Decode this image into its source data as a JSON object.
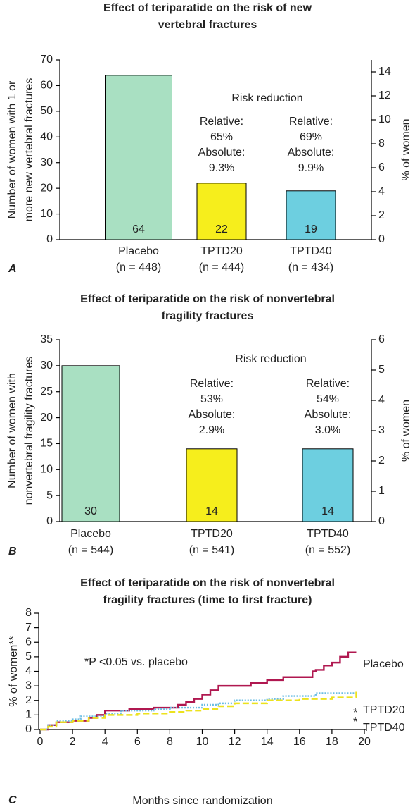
{
  "chart_data": [
    {
      "type": "bar",
      "panel": "A",
      "title": [
        "Effect of teriparatide on the risk of new",
        "vertebral fractures"
      ],
      "ylabel": [
        "Number of women with 1 or",
        "more new vertebral fractures"
      ],
      "y2label": "% of women",
      "categories": [
        "Placebo",
        "TPTD20",
        "TPTD40"
      ],
      "sample_sizes": [
        "(n = 448)",
        "(n = 444)",
        "(n = 434)"
      ],
      "values": [
        64,
        22,
        19
      ],
      "colors": [
        "#a9e0c2",
        "#f6ee1c",
        "#6dcfe0"
      ],
      "ylim": [
        0,
        70
      ],
      "yticks": [
        0,
        10,
        20,
        30,
        40,
        50,
        60,
        70
      ],
      "y2lim": [
        0,
        15
      ],
      "y2ticks": [
        0,
        2,
        4,
        6,
        8,
        10,
        12,
        14
      ],
      "annotations": {
        "heading": "Risk reduction",
        "groups": [
          {
            "category": 1,
            "lines": [
              "Relative:",
              "65%",
              "Absolute:",
              "9.3%"
            ]
          },
          {
            "category": 2,
            "lines": [
              "Relative:",
              "69%",
              "Absolute:",
              "9.9%"
            ]
          }
        ]
      }
    },
    {
      "type": "bar",
      "panel": "B",
      "title": [
        "Effect of teriparatide on the risk of nonvertebral",
        "fragility fractures"
      ],
      "ylabel": [
        "Number of women with",
        "nonvertebral fragility fractures"
      ],
      "y2label": "% of women",
      "categories": [
        "Placebo",
        "TPTD20",
        "TPTD40"
      ],
      "sample_sizes": [
        "(n = 544)",
        "(n = 541)",
        "(n = 552)"
      ],
      "values": [
        30,
        14,
        14
      ],
      "colors": [
        "#a9e0c2",
        "#f6ee1c",
        "#6dcfe0"
      ],
      "ylim": [
        0,
        35
      ],
      "yticks": [
        0,
        5,
        10,
        15,
        20,
        25,
        30,
        35
      ],
      "y2lim": [
        0,
        6
      ],
      "y2ticks": [
        0,
        1,
        2,
        3,
        4,
        5,
        6
      ],
      "annotations": {
        "heading": "Risk reduction",
        "groups": [
          {
            "category": 1,
            "lines": [
              "Relative:",
              "53%",
              "Absolute:",
              "2.9%"
            ]
          },
          {
            "category": 2,
            "lines": [
              "Relative:",
              "54%",
              "Absolute:",
              "3.0%"
            ]
          }
        ]
      }
    },
    {
      "type": "line",
      "panel": "C",
      "step": true,
      "title": [
        "Effect of teriparatide on the risk of nonvertebral",
        "fragility fractures (time to first fracture)"
      ],
      "ylabel": "% of women**",
      "xlabel": "Months since randomization",
      "note": "*P <0.05 vs. placebo",
      "xlim": [
        0,
        20
      ],
      "xticks": [
        0,
        2,
        4,
        6,
        8,
        10,
        12,
        14,
        16,
        18,
        20
      ],
      "ylim": [
        0,
        8
      ],
      "yticks": [
        0,
        1,
        2,
        3,
        4,
        5,
        6,
        7,
        8
      ],
      "series": [
        {
          "name": "Placebo",
          "color": "#b01850",
          "dash": "solid",
          "x": [
            0,
            0.5,
            1,
            2,
            3,
            3.5,
            4,
            5.5,
            7,
            8.5,
            9,
            9.5,
            10,
            10.5,
            11,
            13,
            14,
            15,
            16.8,
            17,
            17.5,
            18,
            18.5,
            19,
            19.5
          ],
          "values": [
            0,
            0.3,
            0.5,
            0.6,
            0.8,
            1.0,
            1.3,
            1.4,
            1.5,
            1.7,
            1.9,
            2.1,
            2.4,
            2.7,
            3.0,
            3.2,
            3.4,
            3.6,
            4.0,
            4.1,
            4.4,
            4.6,
            5.0,
            5.3,
            5.3
          ]
        },
        {
          "name": "TPTD20",
          "color": "#6bbde3",
          "dash": "dotted",
          "marker": "*",
          "x": [
            0,
            0.5,
            1,
            2,
            2.5,
            4,
            5,
            7,
            8,
            10,
            11,
            12,
            14,
            15,
            17,
            19.5
          ],
          "values": [
            0,
            0.3,
            0.6,
            0.7,
            0.9,
            1.1,
            1.3,
            1.4,
            1.5,
            1.7,
            1.8,
            2.0,
            2.1,
            2.3,
            2.5,
            2.5
          ]
        },
        {
          "name": "TPTD40",
          "color": "#ece21e",
          "dash": "dashed",
          "marker": "*",
          "x": [
            0,
            0.5,
            1,
            2,
            3,
            4,
            6,
            8,
            9,
            10,
            11,
            12,
            14,
            16,
            18,
            19.5
          ],
          "values": [
            0,
            0.2,
            0.5,
            0.6,
            0.8,
            1.0,
            1.1,
            1.2,
            1.3,
            1.4,
            1.6,
            1.8,
            2.0,
            2.1,
            2.2,
            2.6
          ]
        }
      ]
    }
  ]
}
